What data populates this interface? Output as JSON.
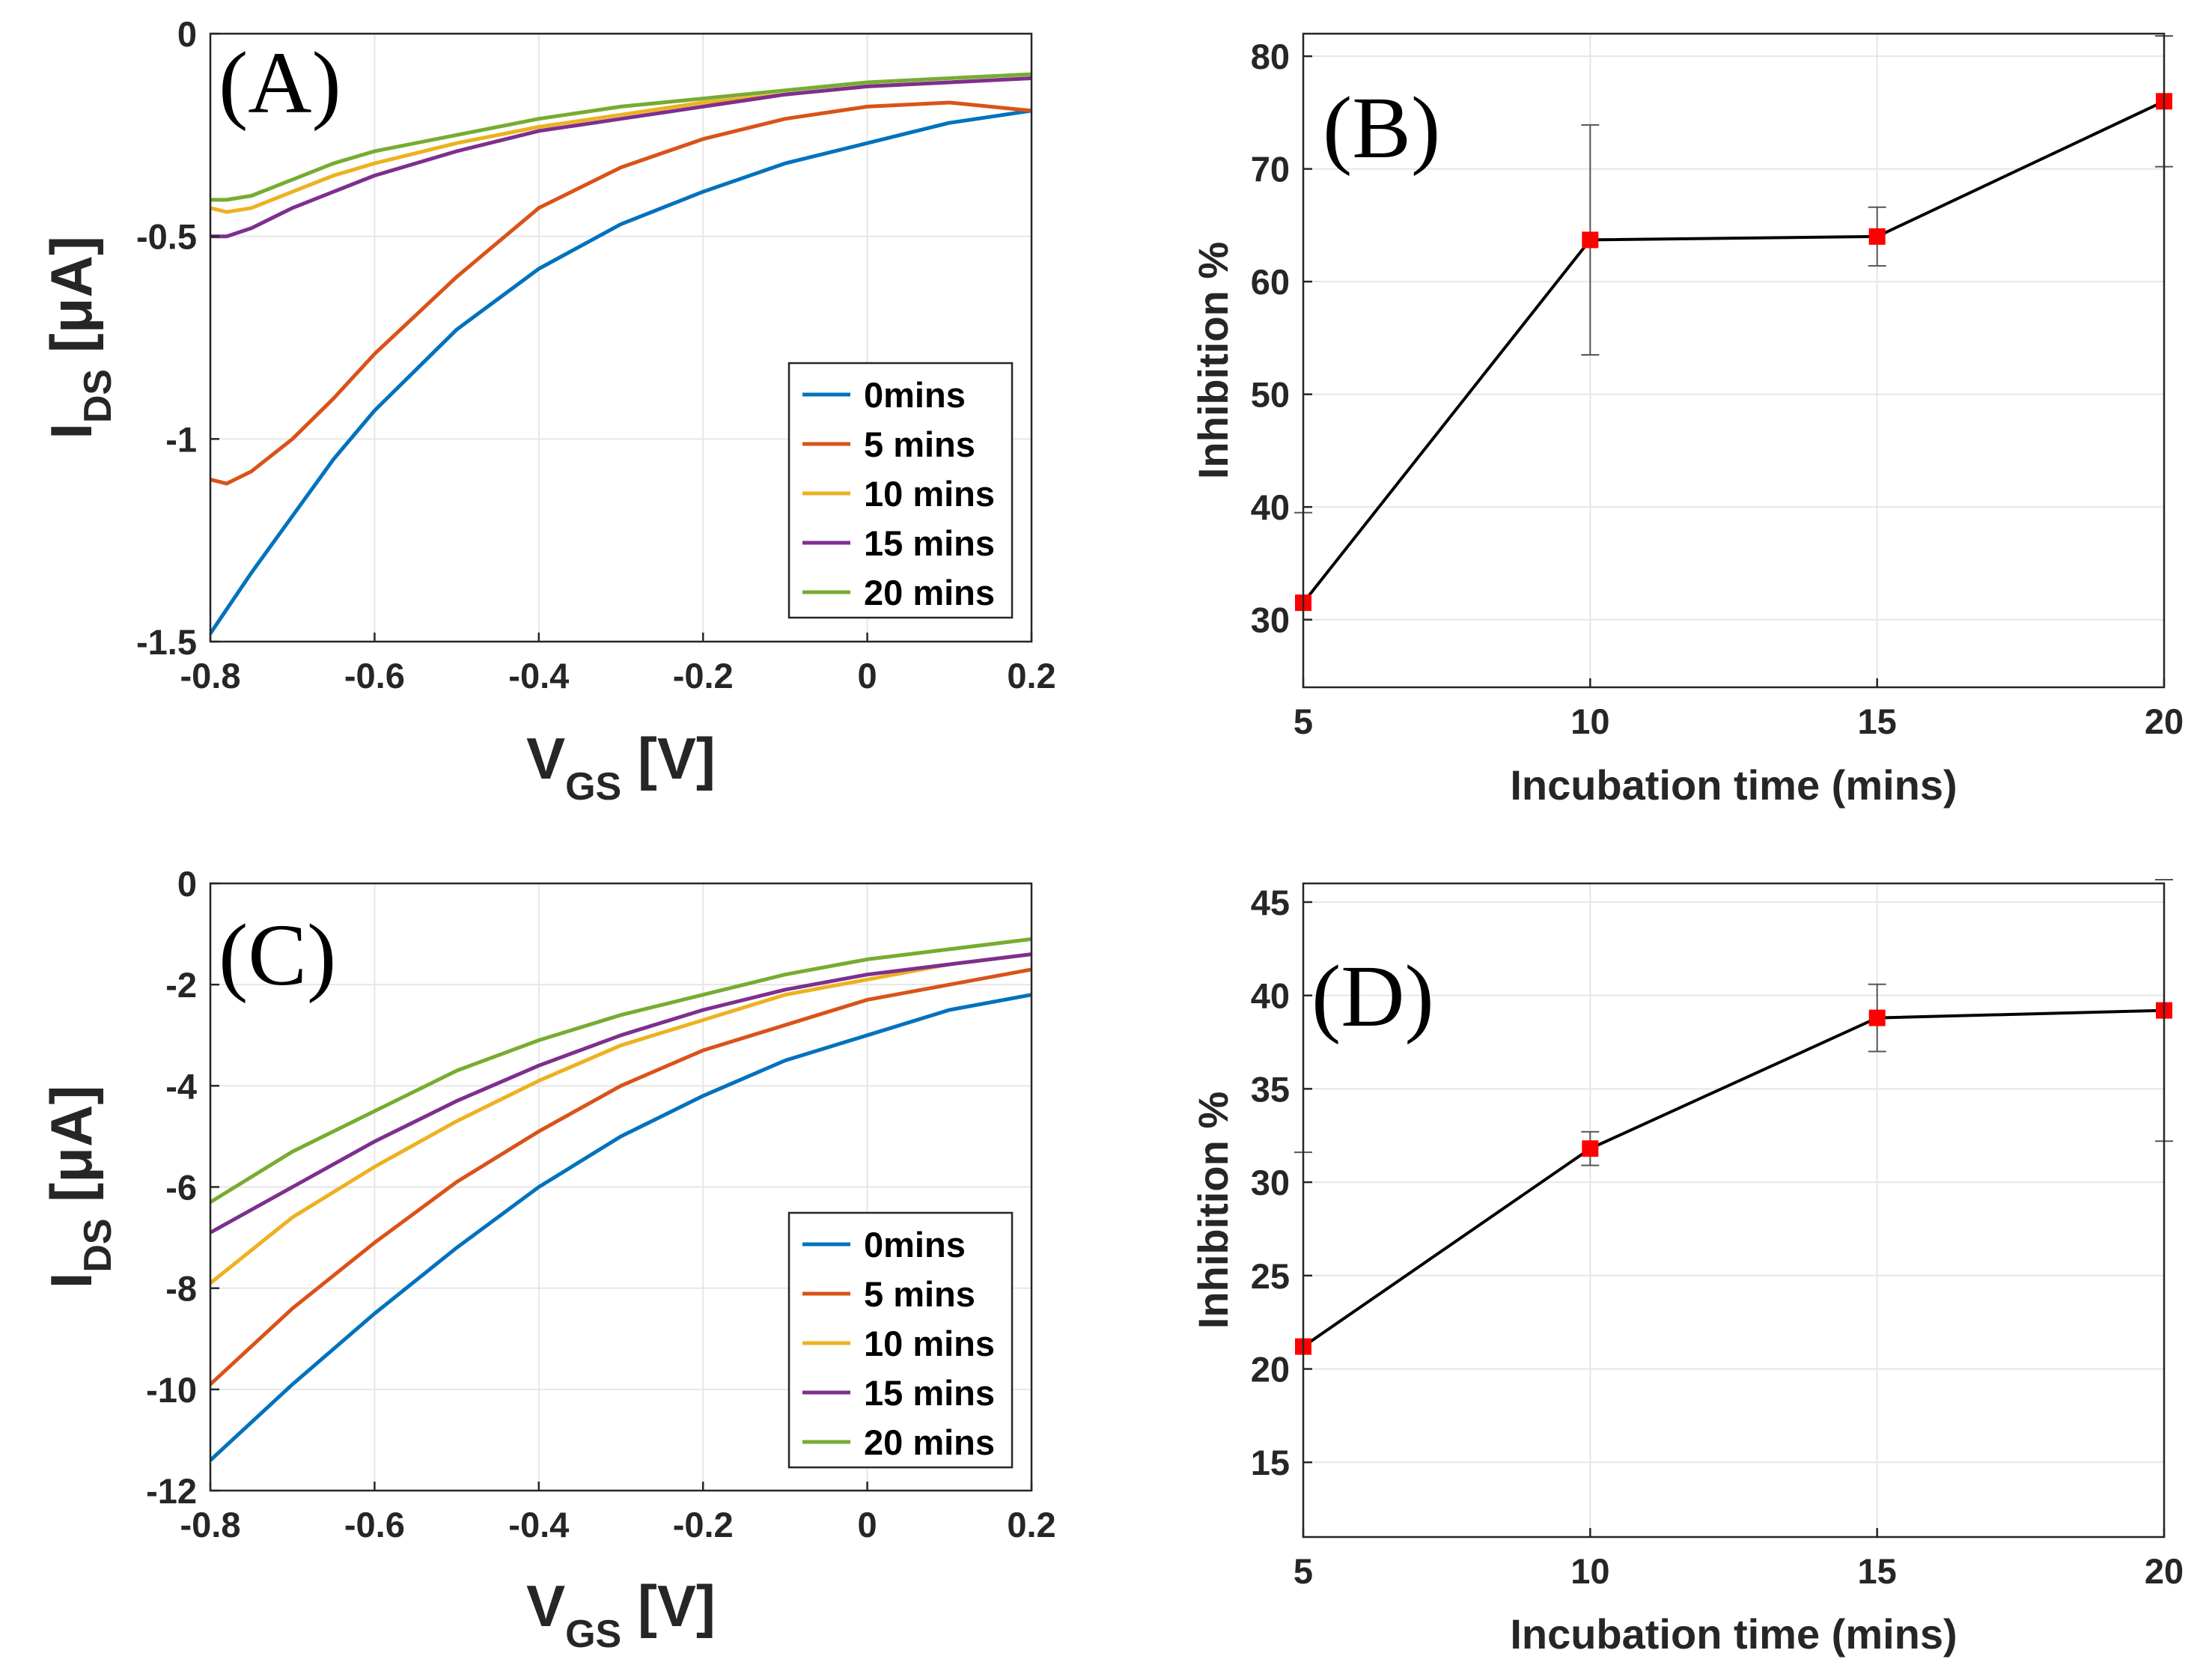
{
  "chart_data": [
    {
      "id": "A",
      "type": "line",
      "panel_label": "(A)",
      "xlabel": "V",
      "xlabel_sub": "GS",
      "xlabel_unit": " [V]",
      "ylabel": "I",
      "ylabel_sub": "DS",
      "ylabel_unit": " [μA]",
      "xlim": [
        -0.8,
        0.2
      ],
      "ylim": [
        -1.5,
        0
      ],
      "xticks": [
        -0.8,
        -0.6,
        -0.4,
        -0.2,
        0,
        0.2
      ],
      "xtick_labels": [
        "-0.8",
        "-0.6",
        "-0.4",
        "-0.2",
        "0",
        "0.2"
      ],
      "yticks": [
        0,
        -0.5,
        -1,
        -1.5
      ],
      "ytick_labels": [
        "0",
        "-0.5",
        "-1",
        "-1.5"
      ],
      "grid": true,
      "legend_position": "bottom-right",
      "x": [
        -0.8,
        -0.78,
        -0.75,
        -0.7,
        -0.65,
        -0.6,
        -0.5,
        -0.4,
        -0.3,
        -0.2,
        -0.1,
        0,
        0.1,
        0.2
      ],
      "series": [
        {
          "name": "0mins",
          "color": "#0072BD",
          "values": [
            -1.48,
            -1.42,
            -1.33,
            -1.19,
            -1.05,
            -0.93,
            -0.73,
            -0.58,
            -0.47,
            -0.39,
            -0.32,
            -0.27,
            -0.22,
            -0.19
          ]
        },
        {
          "name": "5 mins",
          "color": "#D95319",
          "values": [
            -1.1,
            -1.11,
            -1.08,
            -1.0,
            -0.9,
            -0.79,
            -0.6,
            -0.43,
            -0.33,
            -0.26,
            -0.21,
            -0.18,
            -0.17,
            -0.19
          ]
        },
        {
          "name": "10 mins",
          "color": "#EDB120",
          "values": [
            -0.43,
            -0.44,
            -0.43,
            -0.39,
            -0.35,
            -0.32,
            -0.27,
            -0.23,
            -0.2,
            -0.17,
            -0.15,
            -0.13,
            -0.12,
            -0.11
          ]
        },
        {
          "name": "15 mins",
          "color": "#7E2F8E",
          "values": [
            -0.5,
            -0.5,
            -0.48,
            -0.43,
            -0.39,
            -0.35,
            -0.29,
            -0.24,
            -0.21,
            -0.18,
            -0.15,
            -0.13,
            -0.12,
            -0.11
          ]
        },
        {
          "name": "20 mins",
          "color": "#77AC30",
          "values": [
            -0.41,
            -0.41,
            -0.4,
            -0.36,
            -0.32,
            -0.29,
            -0.25,
            -0.21,
            -0.18,
            -0.16,
            -0.14,
            -0.12,
            -0.11,
            -0.1
          ]
        }
      ]
    },
    {
      "id": "B",
      "type": "scatter",
      "panel_label": "(B)",
      "xlabel": "Incubation time (mins)",
      "ylabel": "Inhibition %",
      "xlim": [
        5,
        20
      ],
      "ylim": [
        24,
        82
      ],
      "xticks": [
        5,
        10,
        15,
        20
      ],
      "xtick_labels": [
        "5",
        "10",
        "15",
        "20"
      ],
      "yticks": [
        30,
        40,
        50,
        60,
        70,
        80
      ],
      "ytick_labels": [
        "30",
        "40",
        "50",
        "60",
        "70",
        "80"
      ],
      "grid": true,
      "x": [
        5,
        10,
        15,
        20
      ],
      "values": [
        31.5,
        63.7,
        64.0,
        76.0
      ],
      "error": [
        8,
        10.2,
        2.6,
        5.8
      ],
      "line_color": "#000000",
      "marker_color": "#FF0000"
    },
    {
      "id": "C",
      "type": "line",
      "panel_label": "(C)",
      "xlabel": "V",
      "xlabel_sub": "GS",
      "xlabel_unit": " [V]",
      "ylabel": "I",
      "ylabel_sub": "DS",
      "ylabel_unit": " [μA]",
      "xlim": [
        -0.8,
        0.2
      ],
      "ylim": [
        -12,
        0
      ],
      "xticks": [
        -0.8,
        -0.6,
        -0.4,
        -0.2,
        0,
        0.2
      ],
      "xtick_labels": [
        "-0.8",
        "-0.6",
        "-0.4",
        "-0.2",
        "0",
        "0.2"
      ],
      "yticks": [
        0,
        -2,
        -4,
        -6,
        -8,
        -10,
        -12
      ],
      "ytick_labels": [
        "0",
        "-2",
        "-4",
        "-6",
        "-8",
        "-10",
        "-12"
      ],
      "grid": true,
      "legend_position": "bottom-right",
      "x": [
        -0.8,
        -0.7,
        -0.6,
        -0.5,
        -0.4,
        -0.3,
        -0.2,
        -0.1,
        0,
        0.1,
        0.2
      ],
      "series": [
        {
          "name": "0mins",
          "color": "#0072BD",
          "values": [
            -11.4,
            -9.9,
            -8.5,
            -7.2,
            -6.0,
            -5.0,
            -4.2,
            -3.5,
            -3.0,
            -2.5,
            -2.2
          ]
        },
        {
          "name": "5 mins",
          "color": "#D95319",
          "values": [
            -9.9,
            -8.4,
            -7.1,
            -5.9,
            -4.9,
            -4.0,
            -3.3,
            -2.8,
            -2.3,
            -2.0,
            -1.7
          ]
        },
        {
          "name": "10 mins",
          "color": "#EDB120",
          "values": [
            -7.9,
            -6.6,
            -5.6,
            -4.7,
            -3.9,
            -3.2,
            -2.7,
            -2.2,
            -1.9,
            -1.6,
            -1.4
          ]
        },
        {
          "name": "15 mins",
          "color": "#7E2F8E",
          "values": [
            -6.9,
            -6.0,
            -5.1,
            -4.3,
            -3.6,
            -3.0,
            -2.5,
            -2.1,
            -1.8,
            -1.6,
            -1.4
          ]
        },
        {
          "name": "20 mins",
          "color": "#77AC30",
          "values": [
            -6.3,
            -5.3,
            -4.5,
            -3.7,
            -3.1,
            -2.6,
            -2.2,
            -1.8,
            -1.5,
            -1.3,
            -1.1
          ]
        }
      ]
    },
    {
      "id": "D",
      "type": "scatter",
      "panel_label": "(D)",
      "xlabel": "Incubation time (mins)",
      "ylabel": "Inhibition %",
      "xlim": [
        5,
        20
      ],
      "ylim": [
        11,
        46
      ],
      "xticks": [
        5,
        10,
        15,
        20
      ],
      "xtick_labels": [
        "5",
        "10",
        "15",
        "20"
      ],
      "yticks": [
        15,
        20,
        25,
        30,
        35,
        40,
        45
      ],
      "ytick_labels": [
        "15",
        "20",
        "25",
        "30",
        "35",
        "40",
        "45"
      ],
      "grid": true,
      "x": [
        5,
        10,
        15,
        20
      ],
      "values": [
        21.2,
        31.8,
        38.8,
        39.2
      ],
      "error": [
        10.4,
        0.9,
        1.8,
        7.0
      ],
      "line_color": "#000000",
      "marker_color": "#FF0000"
    }
  ]
}
